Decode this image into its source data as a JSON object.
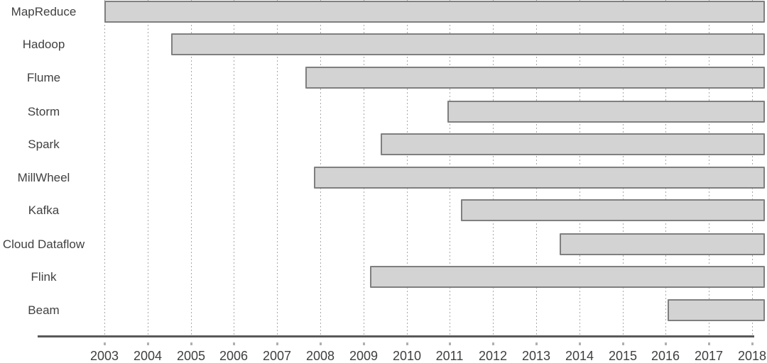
{
  "chart_data": {
    "type": "bar",
    "subtype": "gantt-timeline",
    "orientation": "horizontal",
    "title": "",
    "xlabel": "",
    "ylabel": "",
    "legend": "none",
    "grid": "vertical-dotted",
    "x_ticks": [
      2003,
      2004,
      2005,
      2006,
      2007,
      2008,
      2009,
      2010,
      2011,
      2012,
      2013,
      2014,
      2015,
      2016,
      2017,
      2018
    ],
    "xlim": [
      2003,
      2018.3
    ],
    "categories": [
      "MapReduce",
      "Hadoop",
      "Flume",
      "Storm",
      "Spark",
      "MillWheel",
      "Kafka",
      "Cloud Dataflow",
      "Flink",
      "Beam"
    ],
    "bars": [
      {
        "label": "MapReduce",
        "start": 2003.0,
        "end": 2018.3
      },
      {
        "label": "Hadoop",
        "start": 2004.55,
        "end": 2018.3
      },
      {
        "label": "Flume",
        "start": 2007.65,
        "end": 2018.3
      },
      {
        "label": "Storm",
        "start": 2010.95,
        "end": 2018.3
      },
      {
        "label": "Spark",
        "start": 2009.4,
        "end": 2018.3
      },
      {
        "label": "MillWheel",
        "start": 2007.85,
        "end": 2018.3
      },
      {
        "label": "Kafka",
        "start": 2011.25,
        "end": 2018.3
      },
      {
        "label": "Cloud Dataflow",
        "start": 2013.55,
        "end": 2018.3
      },
      {
        "label": "Flink",
        "start": 2009.15,
        "end": 2018.3
      },
      {
        "label": "Beam",
        "start": 2016.05,
        "end": 2018.3
      }
    ],
    "colors": {
      "bar_fill": "#d3d3d3",
      "bar_border": "#7f7f7f",
      "grid_dots": "#a8a8a8",
      "axis_line": "#595959",
      "tick_mark": "#b0b0b0",
      "label_text": "#414141",
      "year_text": "#3f3f3f",
      "background": "#ffffff"
    }
  }
}
